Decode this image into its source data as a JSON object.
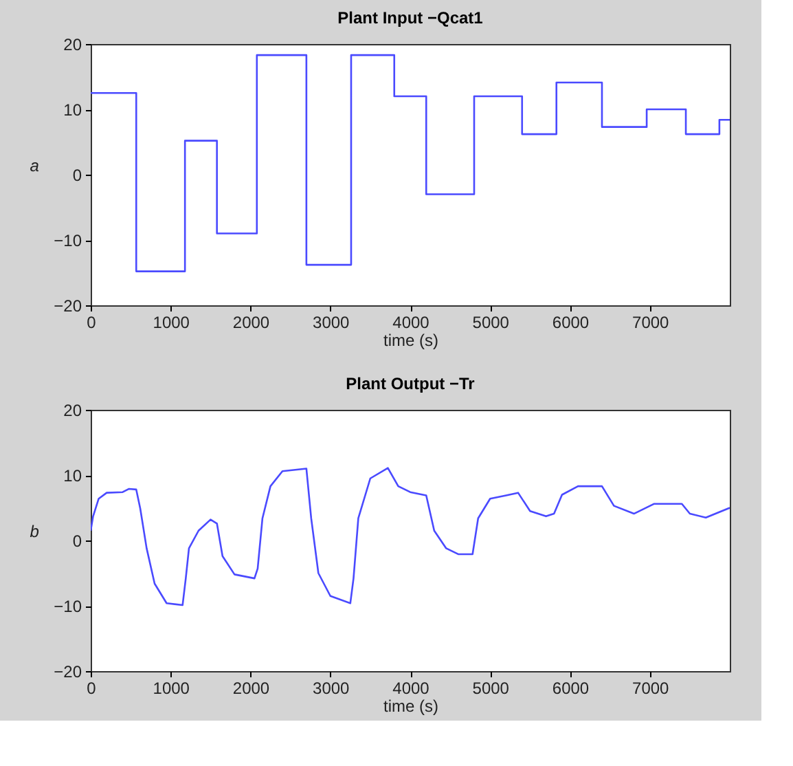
{
  "chart_data": [
    {
      "type": "step",
      "title": "Plant Input −Qcat1",
      "xlabel": "time (s)",
      "ylabel": "a",
      "x": [
        0,
        570,
        1180,
        1580,
        2080,
        2700,
        3260,
        3800,
        4200,
        4800,
        5400,
        5830,
        6400,
        6960,
        7450,
        7870,
        8000
      ],
      "series": [
        {
          "color": "#4a4aff",
          "values": [
            12.5,
            -14.8,
            5.2,
            -9,
            18.3,
            -13.8,
            18.3,
            12,
            -3,
            12,
            6.2,
            14.1,
            7.3,
            10,
            6.2,
            8.4,
            8.4
          ]
        }
      ],
      "xlim": [
        0,
        8000
      ],
      "xticks": [
        0,
        1000,
        2000,
        3000,
        4000,
        5000,
        6000,
        7000
      ],
      "ylim": [
        -20,
        20
      ],
      "yticks": [
        -20,
        -10,
        0,
        10,
        20
      ],
      "grid": false
    },
    {
      "type": "line",
      "title": "Plant Output −Tr",
      "xlabel": "time (s)",
      "ylabel": "b",
      "x": [
        0,
        30,
        100,
        200,
        400,
        480,
        570,
        620,
        700,
        800,
        950,
        1150,
        1190,
        1230,
        1350,
        1500,
        1580,
        1650,
        1800,
        2050,
        2090,
        2150,
        2250,
        2400,
        2700,
        2760,
        2850,
        3000,
        3250,
        3290,
        3350,
        3500,
        3720,
        3850,
        4000,
        4200,
        4300,
        4450,
        4600,
        4780,
        4850,
        5000,
        5200,
        5350,
        5500,
        5700,
        5800,
        5900,
        6100,
        6400,
        6550,
        6800,
        7050,
        7400,
        7500,
        7700,
        8000
      ],
      "series": [
        {
          "color": "#4a4aff",
          "values": [
            1.5,
            3.7,
            6.4,
            7.3,
            7.4,
            7.9,
            7.8,
            4.9,
            -1.2,
            -6.6,
            -9.6,
            -9.9,
            -5.8,
            -1.2,
            1.5,
            3.2,
            2.6,
            -2.4,
            -5.2,
            -5.8,
            -4.3,
            3.4,
            8.3,
            10.6,
            11,
            3.4,
            -5,
            -8.5,
            -9.6,
            -5.8,
            3.4,
            9.5,
            11.1,
            8.3,
            7.4,
            6.9,
            1.5,
            -1.2,
            -2.1,
            -2.1,
            3.4,
            6.4,
            6.9,
            7.3,
            4.5,
            3.7,
            4.1,
            7,
            8.3,
            8.3,
            5.3,
            4.1,
            5.6,
            5.6,
            4.1,
            3.5,
            5
          ]
        }
      ],
      "xlim": [
        0,
        8000
      ],
      "xticks": [
        0,
        1000,
        2000,
        3000,
        4000,
        5000,
        6000,
        7000
      ],
      "ylim": [
        -20,
        20
      ],
      "yticks": [
        -20,
        -10,
        0,
        10,
        20
      ],
      "grid": false
    }
  ]
}
